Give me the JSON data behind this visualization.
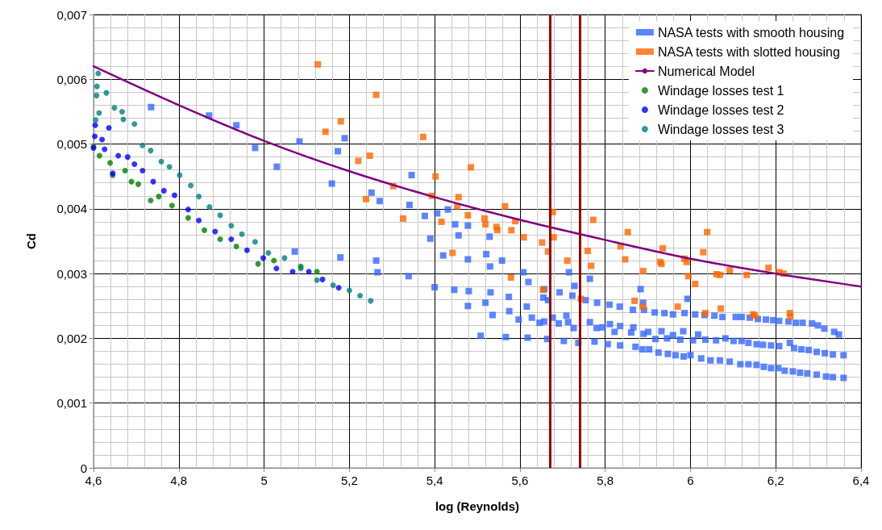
{
  "chart_data": {
    "type": "scatter",
    "xlabel": "log (Reynolds)",
    "ylabel": "Cd",
    "xlim": [
      4.6,
      6.4
    ],
    "ylim": [
      0,
      0.007
    ],
    "xticks": [
      {
        "value": 4.6,
        "label": "4,6"
      },
      {
        "value": 4.8,
        "label": "4,8"
      },
      5,
      {
        "value": 5.2,
        "label": "5,2"
      },
      {
        "value": 5.4,
        "label": "5,4"
      },
      {
        "value": 5.6,
        "label": "5,6"
      },
      {
        "value": 5.8,
        "label": "5,8"
      },
      6,
      {
        "value": 6.2,
        "label": "6,2"
      },
      {
        "value": 6.4,
        "label": "6,4"
      }
    ],
    "yticks": [
      0,
      {
        "value": 0.001,
        "label": "0,001"
      },
      {
        "value": 0.002,
        "label": "0,002"
      },
      {
        "value": 0.003,
        "label": "0,003"
      },
      {
        "value": 0.004,
        "label": "0,004"
      },
      {
        "value": 0.005,
        "label": "0,005"
      },
      {
        "value": 0.006,
        "label": "0,006"
      },
      {
        "value": 0.007,
        "label": "0,007"
      }
    ],
    "grid": true,
    "legend": "top right",
    "ref_lines": [
      {
        "axis": "x",
        "value": 5.67,
        "color": "#990000"
      },
      {
        "axis": "x",
        "value": 5.74,
        "color": "#990000"
      }
    ],
    "series": [
      {
        "name": "NASA tests with smooth housing",
        "marker": "square",
        "color": "#3366ff",
        "x": [
          4.735,
          4.871,
          4.935,
          4.979,
          5.03,
          5.083,
          5.173,
          5.189,
          5.159,
          5.252,
          5.271,
          5.072,
          5.179,
          5.263,
          5.266,
          5.346,
          5.341,
          5.339,
          5.377,
          5.406,
          5.431,
          5.39,
          5.448,
          5.478,
          5.456,
          5.529,
          5.42,
          5.478,
          5.521,
          5.53,
          5.558,
          5.4,
          5.446,
          5.48,
          5.531,
          5.478,
          5.519,
          5.536,
          5.574,
          5.575,
          5.608,
          5.62,
          5.597,
          5.616,
          5.628,
          5.646,
          5.657,
          5.657,
          5.655,
          5.666,
          5.693,
          5.677,
          5.691,
          5.709,
          5.713,
          5.726,
          5.715,
          5.728,
          5.723,
          5.508,
          5.567,
          5.618,
          5.664,
          5.703,
          5.737,
          5.764,
          5.883,
          5.993,
          5.889,
          5.754,
          5.781,
          5.81,
          5.834,
          5.865,
          5.891,
          5.916,
          5.939,
          5.959,
          5.986,
          6.011,
          6.033,
          6.056,
          6.075,
          6.106,
          6.12,
          6.139,
          6.158,
          6.177,
          6.194,
          6.208,
          6.23,
          6.247,
          6.263,
          6.285,
          6.299,
          6.314,
          6.337,
          6.348,
          5.764,
          5.78,
          5.794,
          5.811,
          5.822,
          5.835,
          5.861,
          5.866,
          5.89,
          5.901,
          5.918,
          5.932,
          5.945,
          5.959,
          5.976,
          5.983,
          6.006,
          6.018,
          6.035,
          6.06,
          6.082,
          6.101,
          6.12,
          6.136,
          6.155,
          6.17,
          6.189,
          6.208,
          6.233,
          6.243,
          6.26,
          6.277,
          6.296,
          6.315,
          6.334,
          6.359,
          5.775,
          5.806,
          5.835,
          5.871,
          5.887,
          5.903,
          5.925,
          5.947,
          5.965,
          5.984,
          6.0,
          6.025,
          6.047,
          6.069,
          6.092,
          6.117,
          6.136,
          6.155,
          6.172,
          6.189,
          6.206,
          6.221,
          6.24,
          6.257,
          6.274,
          6.296,
          6.318,
          6.334,
          6.359
        ],
        "values": [
          0.00557,
          0.00544,
          0.00529,
          0.00494,
          0.00465,
          0.00504,
          0.00489,
          0.00509,
          0.00439,
          0.00425,
          0.00412,
          0.00334,
          0.00325,
          0.0032,
          0.00302,
          0.00452,
          0.00406,
          0.00296,
          0.00389,
          0.00393,
          0.00399,
          0.00354,
          0.00376,
          0.00374,
          0.00359,
          0.00357,
          0.00328,
          0.00322,
          0.0033,
          0.00311,
          0.0032,
          0.00279,
          0.00275,
          0.00273,
          0.00271,
          0.0025,
          0.00255,
          0.00236,
          0.00264,
          0.00242,
          0.00302,
          0.00287,
          0.00229,
          0.00249,
          0.00232,
          0.00224,
          0.00226,
          0.00276,
          0.00263,
          0.00259,
          0.00271,
          0.00232,
          0.00223,
          0.00235,
          0.00225,
          0.00216,
          0.00302,
          0.00281,
          0.00266,
          0.00204,
          0.00202,
          0.00201,
          0.00199,
          0.00196,
          0.00193,
          0.00292,
          0.00276,
          0.00261,
          0.00255,
          0.00259,
          0.00255,
          0.00252,
          0.00249,
          0.00244,
          0.00244,
          0.0024,
          0.00239,
          0.00237,
          0.00239,
          0.00237,
          0.00236,
          0.00235,
          0.00233,
          0.00233,
          0.00233,
          0.00232,
          0.0023,
          0.00229,
          0.00228,
          0.00227,
          0.00226,
          0.00224,
          0.00224,
          0.00223,
          0.0022,
          0.00215,
          0.0021,
          0.00206,
          0.00225,
          0.00216,
          0.00217,
          0.00222,
          0.0021,
          0.00219,
          0.00209,
          0.00217,
          0.00207,
          0.0021,
          0.00199,
          0.00211,
          0.002,
          0.00205,
          0.00198,
          0.00211,
          0.00197,
          0.00206,
          0.00198,
          0.00197,
          0.002,
          0.00196,
          0.00196,
          0.00193,
          0.00191,
          0.0019,
          0.00189,
          0.00188,
          0.00193,
          0.00185,
          0.00183,
          0.00182,
          0.00179,
          0.00177,
          0.00175,
          0.00174,
          0.00195,
          0.00191,
          0.00189,
          0.00187,
          0.00183,
          0.00183,
          0.00178,
          0.00176,
          0.00174,
          0.00172,
          0.00174,
          0.00169,
          0.00166,
          0.00166,
          0.00164,
          0.0016,
          0.0016,
          0.00159,
          0.00156,
          0.00154,
          0.00154,
          0.0015,
          0.00149,
          0.00147,
          0.00146,
          0.00144,
          0.00141,
          0.0014,
          0.00139
        ]
      },
      {
        "name": "NASA tests with slotted housing",
        "marker": "square",
        "color": "#ff6600",
        "x": [
          5.126,
          5.263,
          5.18,
          5.144,
          5.221,
          5.248,
          5.239,
          5.373,
          5.485,
          5.402,
          5.303,
          5.393,
          5.456,
          5.453,
          5.565,
          5.326,
          5.416,
          5.478,
          5.517,
          5.519,
          5.545,
          5.547,
          5.58,
          5.589,
          5.609,
          5.677,
          5.652,
          5.679,
          5.666,
          5.442,
          5.711,
          5.579,
          5.654,
          5.772,
          5.853,
          5.759,
          5.767,
          5.836,
          5.847,
          5.935,
          5.929,
          5.932,
          5.889,
          5.743,
          5.869,
          5.888,
          5.986,
          5.991,
          5.995,
          6.011,
          5.97,
          6.039,
          6.03,
          6.035,
          6.061,
          6.069,
          6.071,
          6.092,
          6.132,
          6.147,
          6.151,
          6.183,
          6.208,
          6.218,
          6.233,
          6.234
        ],
        "values": [
          0.00623,
          0.00576,
          0.00535,
          0.00519,
          0.00474,
          0.00482,
          0.00415,
          0.00511,
          0.00464,
          0.0045,
          0.00435,
          0.0042,
          0.00418,
          0.00404,
          0.00404,
          0.00385,
          0.0038,
          0.0039,
          0.00385,
          0.00376,
          0.00372,
          0.00367,
          0.00367,
          0.00381,
          0.00356,
          0.00395,
          0.00348,
          0.00356,
          0.00334,
          0.00332,
          0.0032,
          0.00294,
          0.00275,
          0.00383,
          0.00364,
          0.00335,
          0.00312,
          0.00342,
          0.00322,
          0.00339,
          0.00318,
          0.00315,
          0.00304,
          0.00261,
          0.00258,
          0.00249,
          0.00323,
          0.00318,
          0.00296,
          0.00284,
          0.00249,
          0.00364,
          0.00333,
          0.00239,
          0.00299,
          0.00298,
          0.00246,
          0.00305,
          0.00298,
          0.00237,
          0.00235,
          0.00309,
          0.00302,
          0.003,
          0.00239,
          0.00234
        ]
      },
      {
        "name": "Numerical Model",
        "type": "line",
        "marker": "none",
        "line_style": "solid",
        "color": "#800080",
        "x": [
          4.6,
          4.8,
          5.0,
          5.2,
          5.4,
          5.6,
          5.8,
          6.0,
          6.2,
          6.4
        ],
        "values": [
          0.0062,
          0.0056,
          0.00505,
          0.00458,
          0.00418,
          0.00383,
          0.00352,
          0.00323,
          0.003,
          0.0028
        ]
      },
      {
        "name": "Windage losses test 1",
        "marker": "circle",
        "color": "#008000",
        "x": [
          4.6,
          4.614,
          4.639,
          4.645,
          4.674,
          4.689,
          4.705,
          4.734,
          4.753,
          4.784,
          4.822,
          4.86,
          4.897,
          4.935,
          4.986,
          5.023,
          5.086,
          5.124
        ],
        "values": [
          0.00496,
          0.00482,
          0.00471,
          0.00452,
          0.00459,
          0.00442,
          0.00438,
          0.00413,
          0.00419,
          0.00405,
          0.00386,
          0.00367,
          0.00353,
          0.00342,
          0.00315,
          0.0032,
          0.00311,
          0.00303
        ]
      },
      {
        "name": "Windage losses test 2",
        "marker": "circle",
        "color": "#0000ff",
        "x": [
          4.604,
          4.603,
          4.636,
          4.62,
          4.6,
          4.626,
          4.658,
          4.68,
          4.645,
          4.696,
          4.715,
          4.74,
          4.765,
          4.79,
          4.822,
          4.847,
          4.885,
          4.923,
          4.96,
          4.998,
          5.029,
          5.067,
          5.105,
          5.137,
          5.175
        ],
        "values": [
          0.00529,
          0.00512,
          0.00525,
          0.00507,
          0.00494,
          0.00492,
          0.00482,
          0.0048,
          0.00455,
          0.00469,
          0.00459,
          0.00442,
          0.00428,
          0.00421,
          0.00399,
          0.00382,
          0.00365,
          0.00353,
          0.00336,
          0.00324,
          0.00308,
          0.00303,
          0.00303,
          0.00291,
          0.00278
        ]
      },
      {
        "name": "Windage losses test 3",
        "marker": "circle",
        "color": "#008080",
        "x": [
          4.611,
          4.608,
          4.607,
          4.63,
          4.613,
          4.649,
          4.605,
          4.667,
          4.67,
          4.696,
          4.715,
          4.734,
          4.759,
          4.778,
          4.802,
          4.828,
          4.847,
          4.872,
          4.897,
          4.923,
          4.948,
          4.979,
          5.01,
          5.048,
          5.086,
          5.124,
          5.162,
          5.2,
          5.225,
          5.25
        ],
        "values": [
          0.00609,
          0.00589,
          0.00575,
          0.00579,
          0.00548,
          0.00556,
          0.00537,
          0.0055,
          0.00538,
          0.00531,
          0.00498,
          0.0049,
          0.00473,
          0.00465,
          0.00452,
          0.00436,
          0.00419,
          0.00403,
          0.0039,
          0.00374,
          0.00361,
          0.00349,
          0.00332,
          0.00324,
          0.00308,
          0.0029,
          0.00282,
          0.00274,
          0.00266,
          0.00258
        ]
      }
    ]
  }
}
